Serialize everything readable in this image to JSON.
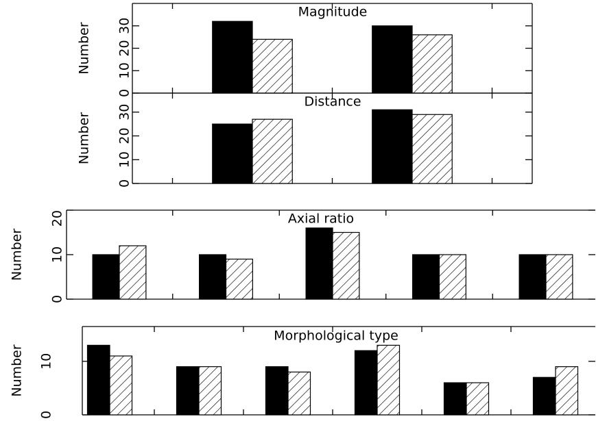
{
  "chart_data": [
    {
      "type": "bar",
      "title": "Magnitude",
      "ylabel": "Number",
      "categories": [
        null,
        null
      ],
      "series": [
        {
          "color": "#000000",
          "hatch": false,
          "values": [
            32,
            30
          ]
        },
        {
          "color": "#000000",
          "hatch": true,
          "values": [
            24,
            26
          ]
        }
      ],
      "ylim": [
        0,
        40
      ],
      "yticks": [
        0,
        10,
        20,
        30
      ]
    },
    {
      "type": "bar",
      "title": "Distance",
      "ylabel": "Number",
      "categories": [
        null,
        null
      ],
      "series": [
        {
          "color": "#000000",
          "hatch": false,
          "values": [
            25,
            31
          ]
        },
        {
          "color": "#000000",
          "hatch": true,
          "values": [
            27,
            29
          ]
        }
      ],
      "ylim": [
        0,
        38
      ],
      "yticks": [
        0,
        10,
        20,
        30
      ]
    },
    {
      "type": "bar",
      "title": "Axial ratio",
      "ylabel": "Number",
      "categories": [
        null,
        null,
        null,
        null,
        null
      ],
      "series": [
        {
          "color": "#000000",
          "hatch": false,
          "values": [
            10,
            10,
            16,
            10,
            10
          ]
        },
        {
          "color": "#000000",
          "hatch": true,
          "values": [
            12,
            9,
            15,
            10,
            10
          ]
        }
      ],
      "ylim": [
        0,
        20
      ],
      "yticks": [
        0,
        10,
        20
      ]
    },
    {
      "type": "bar",
      "title": "Morphological type",
      "ylabel": "Number",
      "categories": [
        null,
        null,
        null,
        null,
        null,
        null
      ],
      "series": [
        {
          "color": "#000000",
          "hatch": false,
          "values": [
            13,
            9,
            9,
            12,
            6,
            7
          ]
        },
        {
          "color": "#000000",
          "hatch": true,
          "values": [
            11,
            9,
            8,
            13,
            6,
            9
          ]
        }
      ],
      "ylim": [
        0,
        16.5
      ],
      "yticks": [
        0,
        10
      ]
    }
  ]
}
